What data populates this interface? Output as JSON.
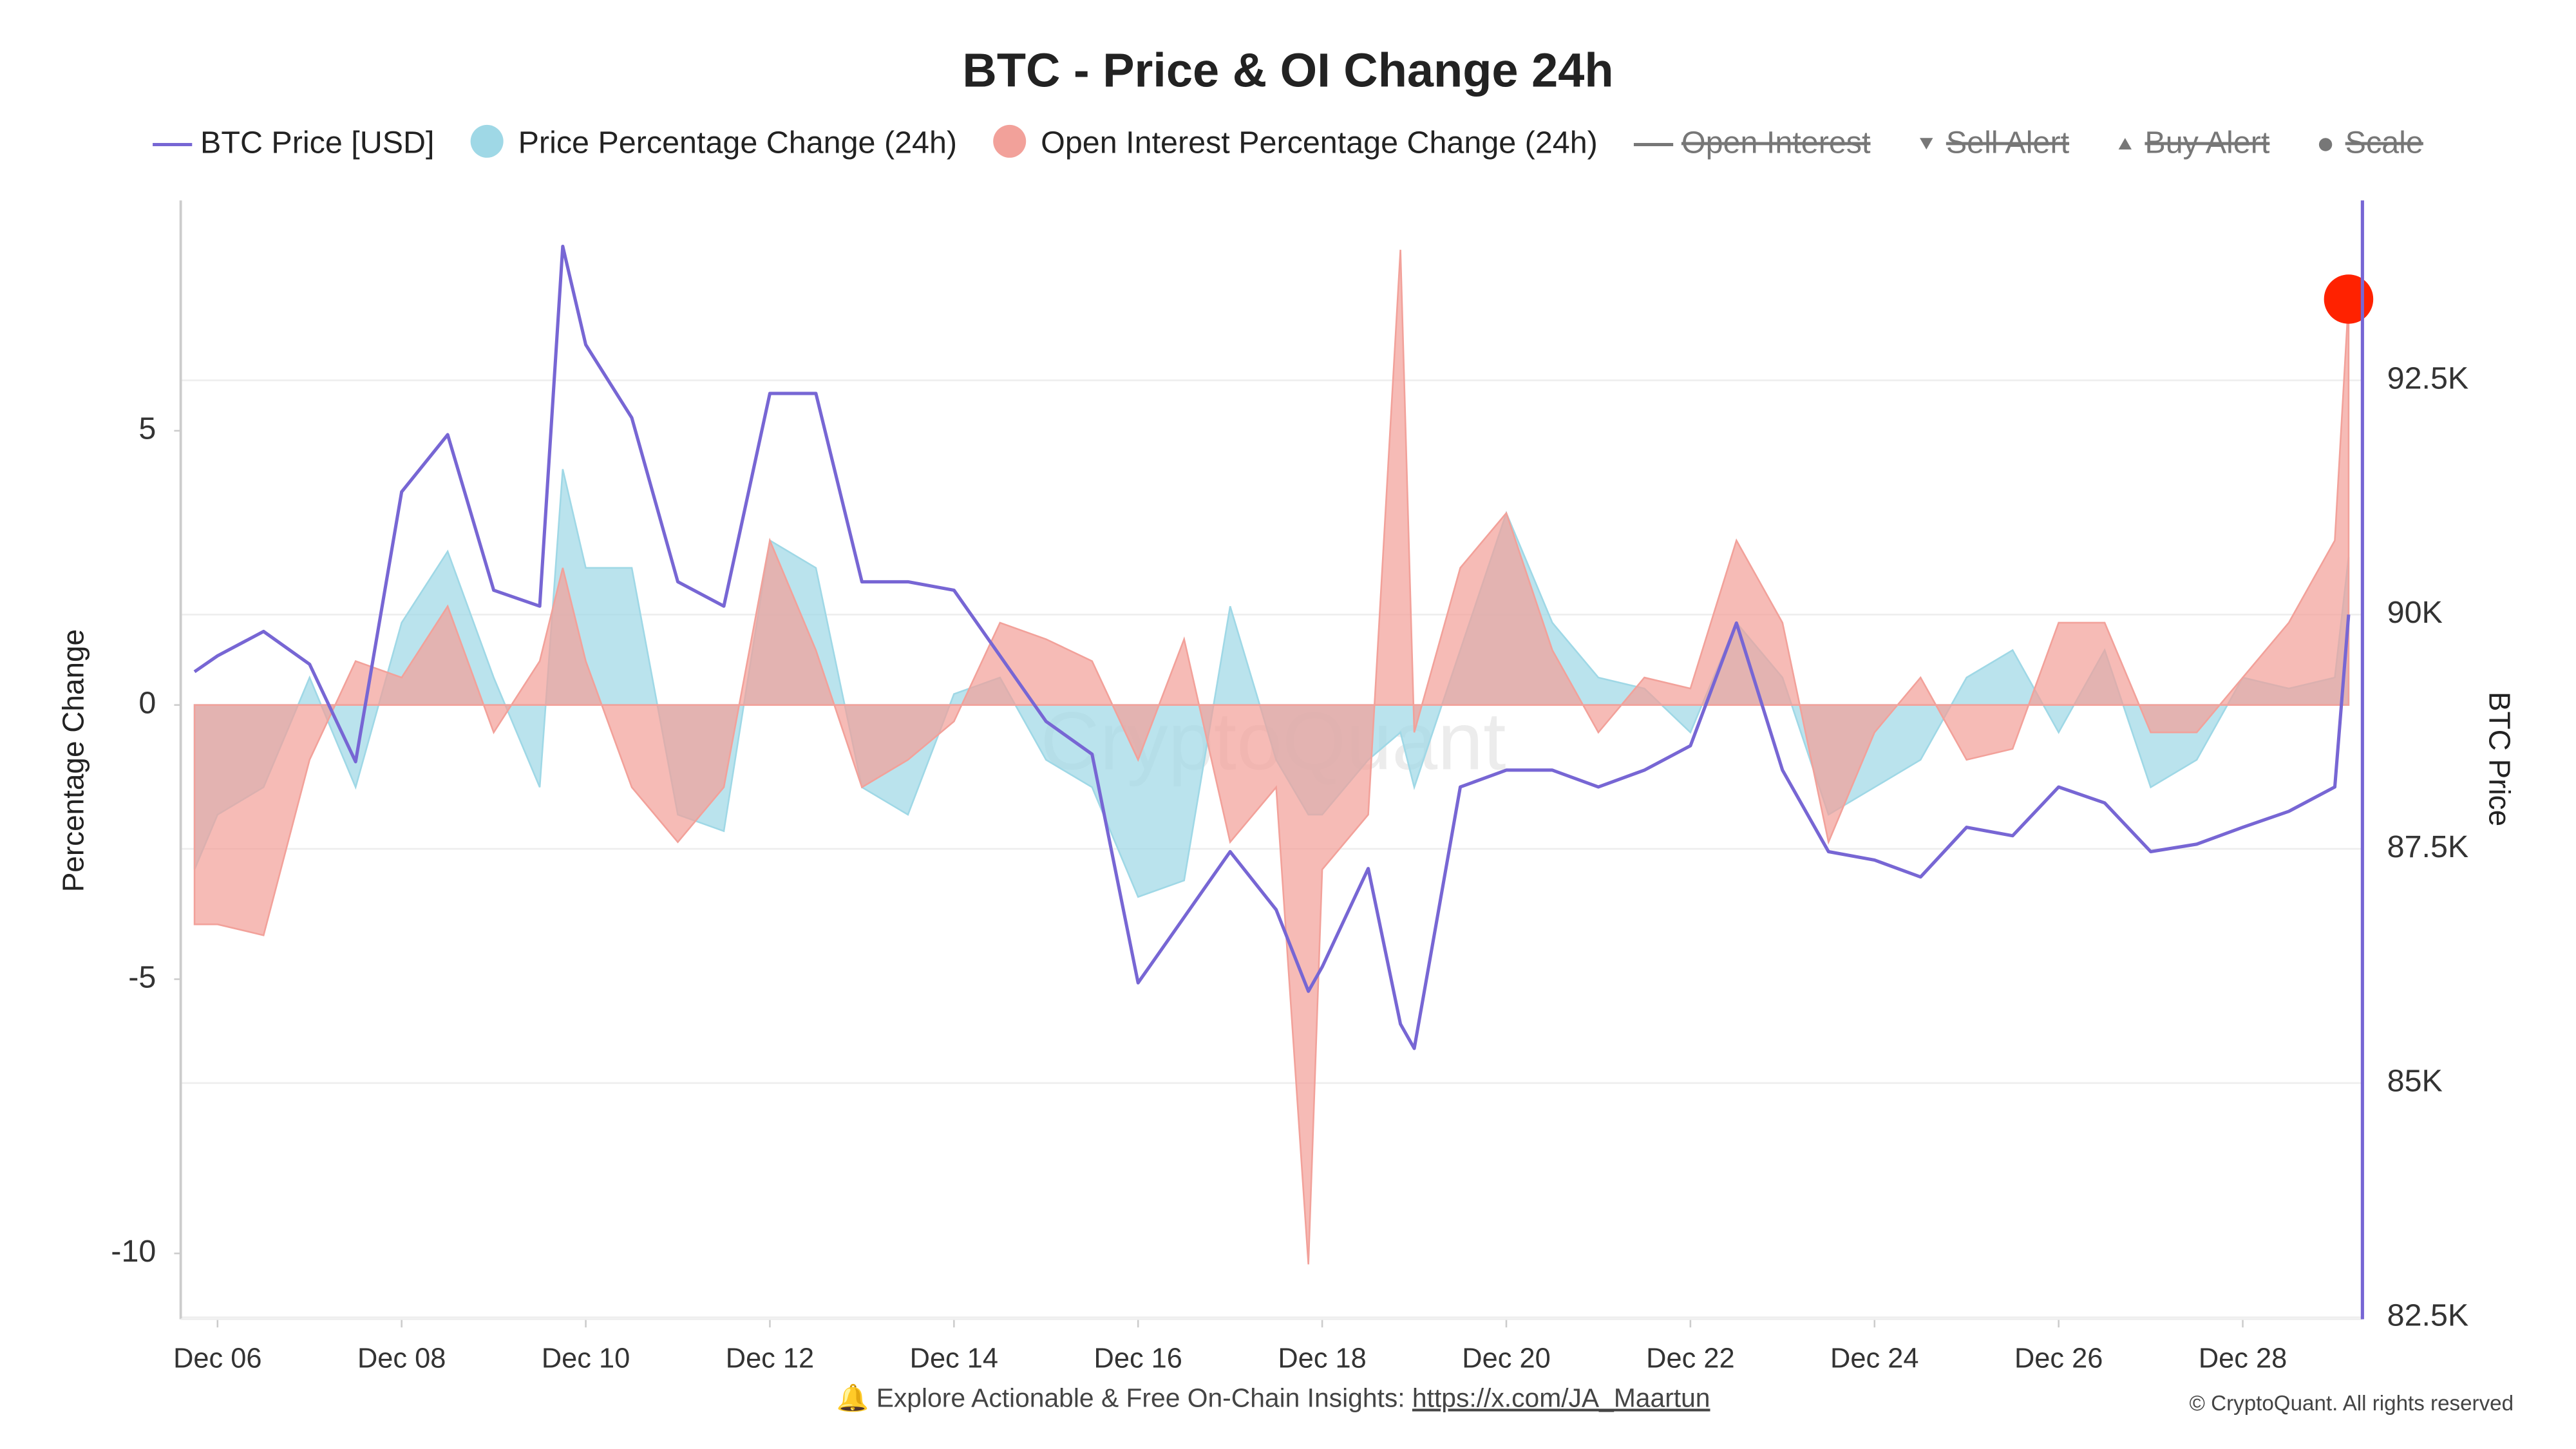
{
  "chart_data": {
    "type": "line",
    "title": "BTC - Price & OI Change 24h",
    "ylabel": "Percentage Change",
    "y2label": "BTC Price",
    "watermark": "CryptoQuant",
    "x": [
      5.75,
      6,
      6.5,
      7,
      7.5,
      8,
      8.5,
      9,
      9.5,
      9.75,
      10,
      10.5,
      11,
      11.5,
      12,
      12.5,
      13,
      13.5,
      14,
      14.5,
      15,
      15.5,
      16,
      16.5,
      17,
      17.5,
      17.85,
      18,
      18.5,
      18.85,
      19,
      19.5,
      20,
      20.5,
      21,
      21.5,
      22,
      22.5,
      23,
      23.5,
      24,
      24.5,
      25,
      25.5,
      26,
      26.5,
      27,
      27.5,
      28,
      28.5,
      29,
      29.15
    ],
    "xlim": [
      5.6,
      29.3
    ],
    "xticks": [
      {
        "value": 6,
        "label": "Dec 06"
      },
      {
        "value": 8,
        "label": "Dec 08"
      },
      {
        "value": 10,
        "label": "Dec 10"
      },
      {
        "value": 12,
        "label": "Dec 12"
      },
      {
        "value": 14,
        "label": "Dec 14"
      },
      {
        "value": 16,
        "label": "Dec 16"
      },
      {
        "value": 18,
        "label": "Dec 18"
      },
      {
        "value": 20,
        "label": "Dec 20"
      },
      {
        "value": 22,
        "label": "Dec 22"
      },
      {
        "value": 24,
        "label": "Dec 24"
      },
      {
        "value": 26,
        "label": "Dec 26"
      },
      {
        "value": 28,
        "label": "Dec 28"
      }
    ],
    "ylim": [
      -11.2,
      9.2
    ],
    "yticks": [
      -10,
      -5,
      0,
      5
    ],
    "y2lim": [
      82480,
      94420
    ],
    "y2ticks": [
      {
        "value": 82500,
        "label": "82.5K"
      },
      {
        "value": 85000,
        "label": "85K"
      },
      {
        "value": 87500,
        "label": "87.5K"
      },
      {
        "value": 90000,
        "label": "90K"
      },
      {
        "value": 92500,
        "label": "92.5K"
      }
    ],
    "grid": true,
    "series": [
      {
        "name": "BTC Price [USD]",
        "kind": "line",
        "axis": "y2",
        "color": "#7766d4",
        "values": [
          89390,
          89560,
          89820,
          89470,
          88430,
          91310,
          91920,
          90260,
          90090,
          93930,
          92880,
          92100,
          90350,
          90090,
          92360,
          92360,
          90350,
          90350,
          90260,
          89560,
          88860,
          88510,
          86070,
          86770,
          87470,
          86850,
          85980,
          86240,
          87290,
          85630,
          85370,
          88160,
          88340,
          88340,
          88160,
          88340,
          88600,
          89910,
          88340,
          87470,
          87380,
          87200,
          87730,
          87640,
          88160,
          87990,
          87470,
          87550,
          87730,
          87900,
          88160,
          90000
        ]
      },
      {
        "name": "Price Percentage Change (24h)",
        "kind": "area",
        "color": "#9fd8e6",
        "values": [
          -3,
          -2,
          -1.5,
          0.5,
          -1.5,
          1.5,
          2.8,
          0.5,
          -1.5,
          4.3,
          2.5,
          2.5,
          -2,
          -2.3,
          3,
          2.5,
          -1.5,
          -2,
          0.2,
          0.5,
          -1,
          -1.5,
          -3.5,
          -3.2,
          1.8,
          -1,
          -2,
          -2,
          -1,
          -0.5,
          -1.5,
          1,
          3.5,
          1.5,
          0.5,
          0.3,
          -0.5,
          1.5,
          0.5,
          -2,
          -1.5,
          -1,
          0.5,
          1,
          -0.5,
          1,
          -1.5,
          -1,
          0.5,
          0.3,
          0.5,
          2.7
        ]
      },
      {
        "name": "Open Interest Percentage Change (24h)",
        "kind": "area",
        "color": "#f2a19a",
        "end_marker_color": "#ff2200",
        "values": [
          -4,
          -4,
          -4.2,
          -1,
          0.8,
          0.5,
          1.8,
          -0.5,
          0.8,
          2.5,
          0.8,
          -1.5,
          -2.5,
          -1.5,
          3,
          1,
          -1.5,
          -1,
          -0.3,
          1.5,
          1.2,
          0.8,
          -1,
          1.2,
          -2.5,
          -1.5,
          -10.2,
          -3,
          -2,
          8.3,
          -0.5,
          2.5,
          3.5,
          1,
          -0.5,
          0.5,
          0.3,
          3,
          1.5,
          -2.5,
          -0.5,
          0.5,
          -1,
          -0.8,
          1.5,
          1.5,
          -0.5,
          -0.5,
          0.5,
          1.5,
          3,
          7.4
        ]
      }
    ],
    "legend_hidden": [
      {
        "name": "Open Interest",
        "symbol": "line"
      },
      {
        "name": "Sell Alert",
        "symbol": "triangle-down"
      },
      {
        "name": "Buy Alert",
        "symbol": "triangle-up"
      },
      {
        "name": "Scale",
        "symbol": "dot"
      }
    ],
    "footer": {
      "text": "🔔 Explore Actionable & Free On-Chain Insights: ",
      "link": "https://x.com/JA_Maartun"
    },
    "copyright": "© CryptoQuant. All rights reserved"
  }
}
